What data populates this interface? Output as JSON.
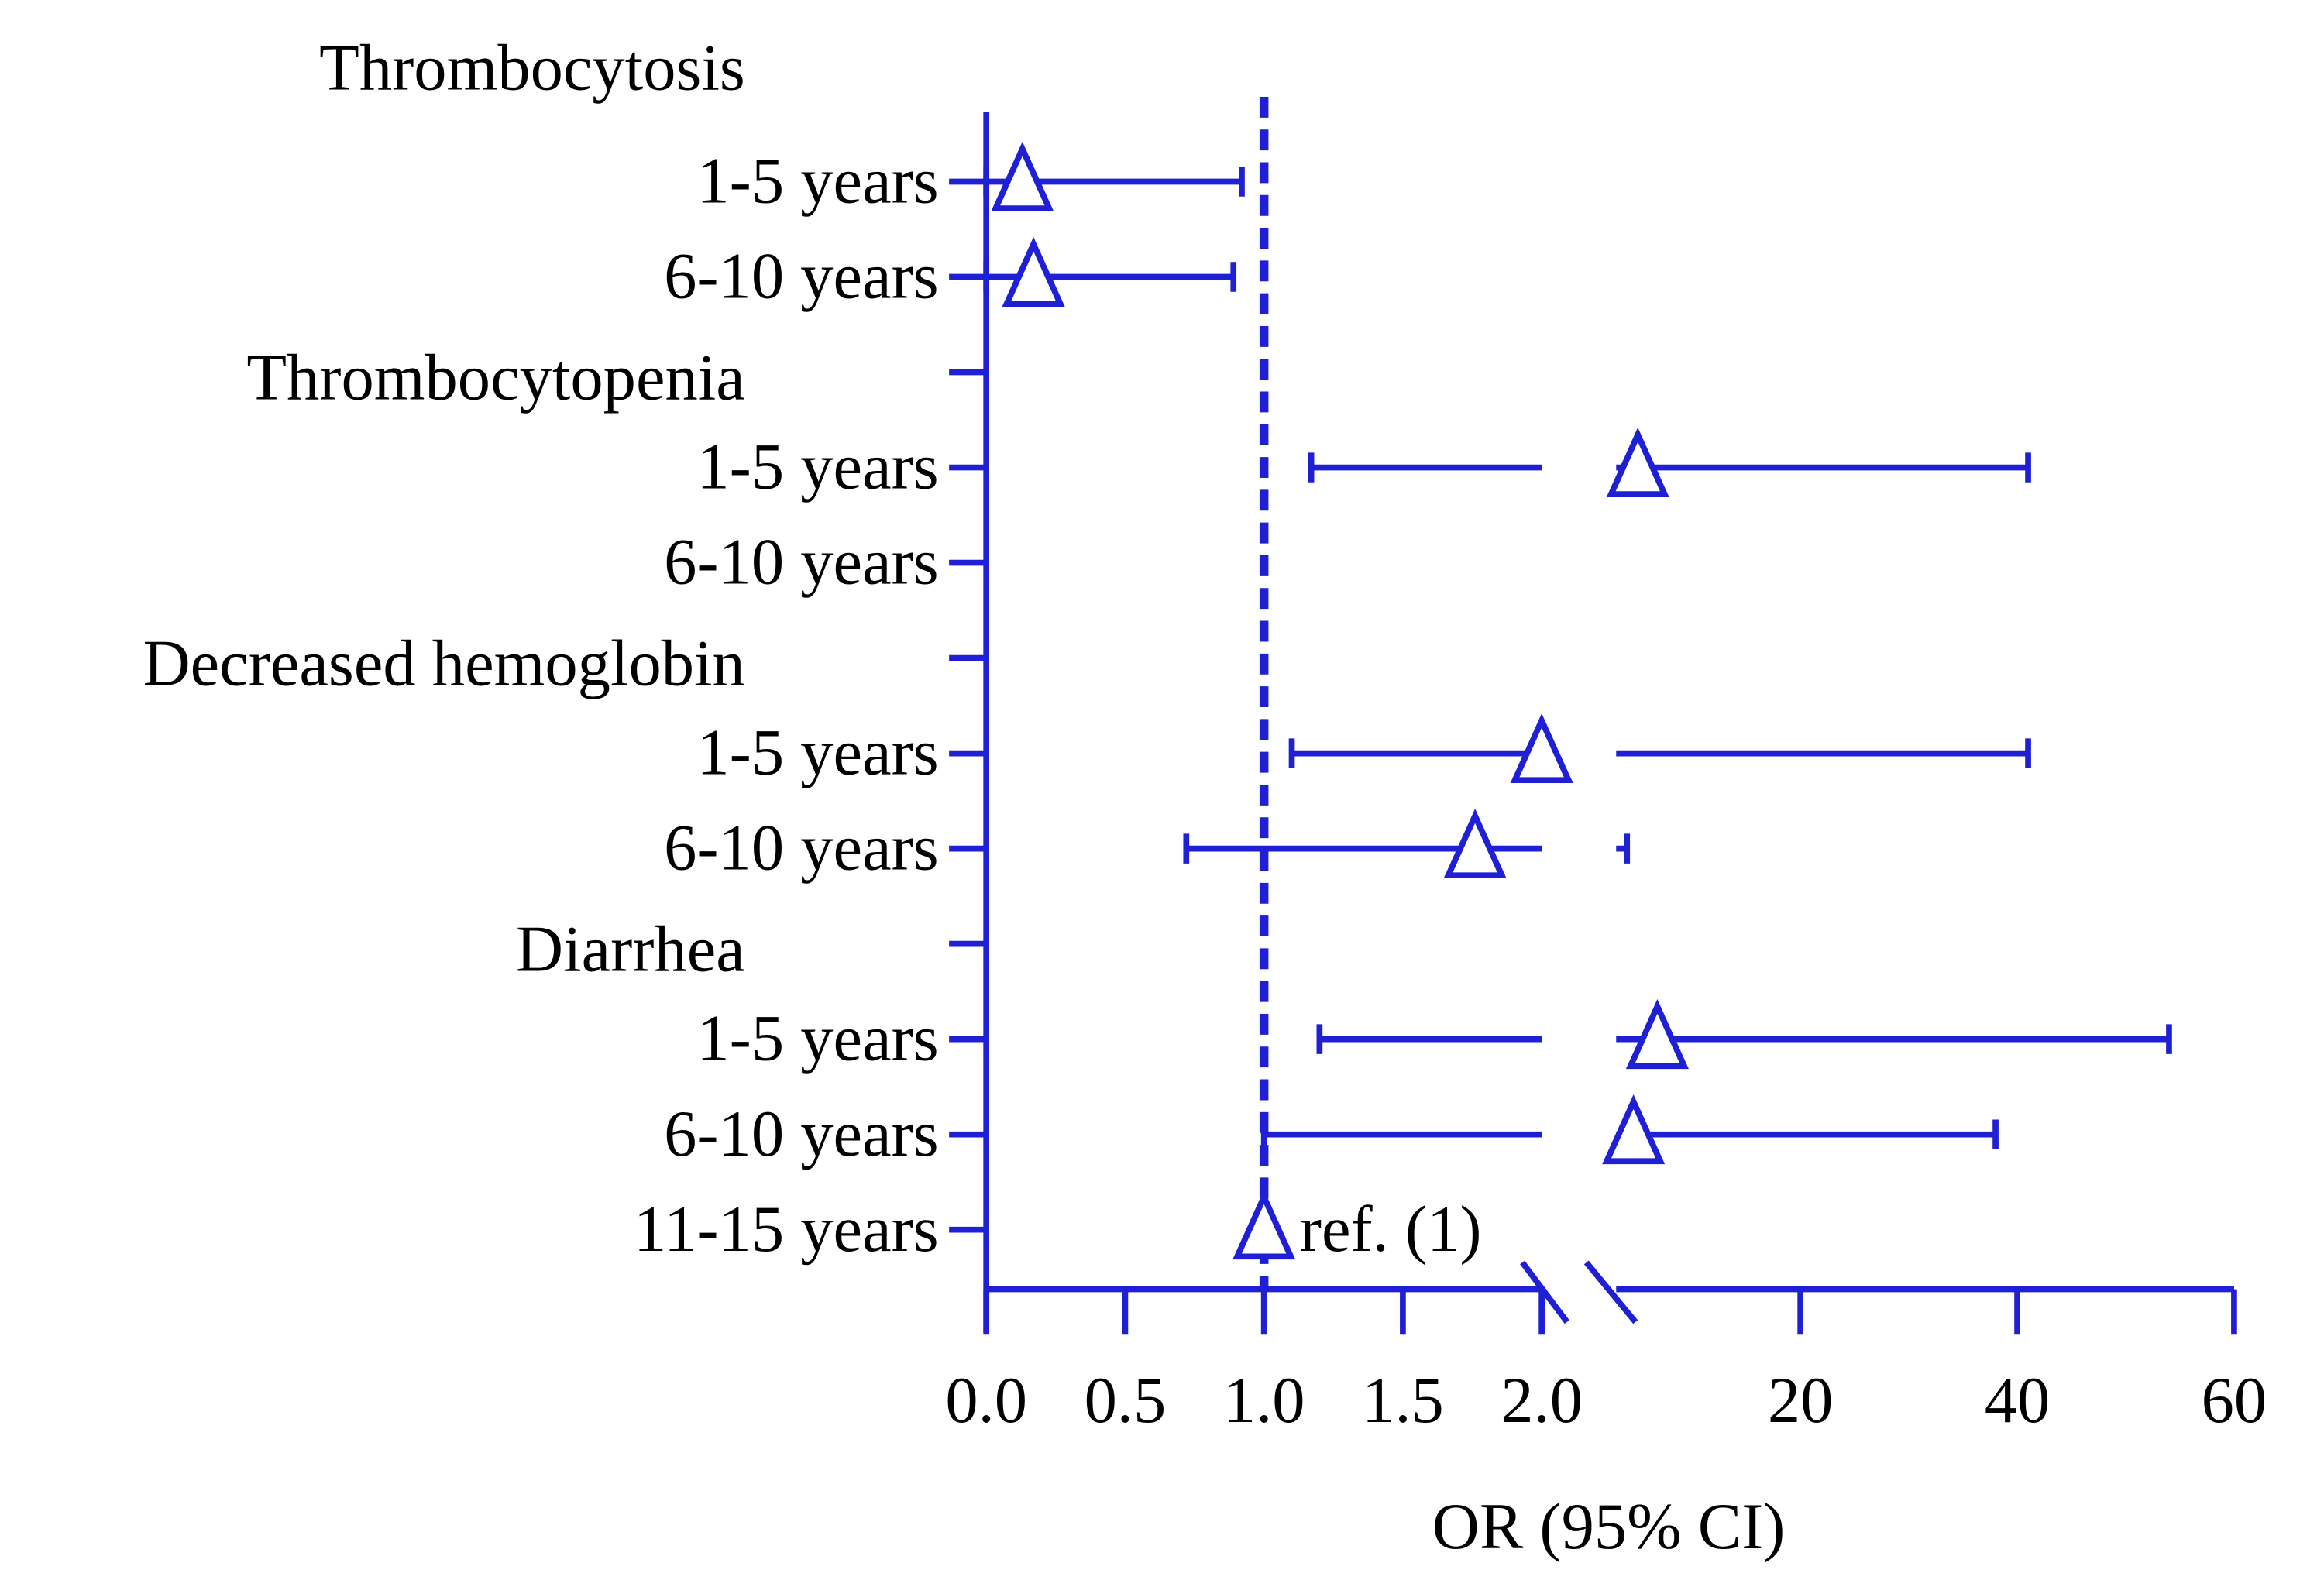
{
  "chart_data": {
    "type": "forest",
    "color": "#1f1fd6",
    "x_label": "OR (95% CI)",
    "reference_line": 1,
    "annotation": "ref. (1)",
    "x_segments": [
      {
        "xlim": [
          0,
          2
        ],
        "xticks": [
          {
            "value": 0,
            "label": "0.0"
          },
          {
            "value": 0.5,
            "label": "0.5"
          },
          {
            "value": 1,
            "label": "1.0"
          },
          {
            "value": 1.5,
            "label": "1.5"
          },
          {
            "value": 2,
            "label": "2.0"
          }
        ]
      },
      {
        "xlim": [
          3,
          60
        ],
        "xticks": [
          20,
          40,
          60
        ]
      }
    ],
    "groups": [
      {
        "name": "Thrombocytosis",
        "categories": [
          "1-5 years",
          "6-10 years"
        ],
        "values": [
          0.13,
          0.17
        ],
        "lower": [
          0,
          0
        ],
        "upper": [
          0.92,
          0.89
        ]
      },
      {
        "name": "Thrombocytopenia",
        "categories": [
          "1-5 years",
          "6-10 years"
        ],
        "values": [
          5,
          null
        ],
        "lower": [
          1.17,
          null
        ],
        "upper": [
          41,
          null
        ]
      },
      {
        "name": "Decreased hemoglobin",
        "categories": [
          "1-5 years",
          "6-10 years"
        ],
        "values": [
          2,
          1.76
        ],
        "lower": [
          1.1,
          0.72
        ],
        "upper": [
          41,
          4
        ]
      },
      {
        "name": "Diarrhea",
        "categories": [
          "1-5 years",
          "6-10 years",
          "11-15 years"
        ],
        "values": [
          6.8,
          4.6,
          1
        ],
        "lower": [
          1.2,
          1,
          null
        ],
        "upper": [
          54,
          38,
          null
        ]
      }
    ]
  }
}
